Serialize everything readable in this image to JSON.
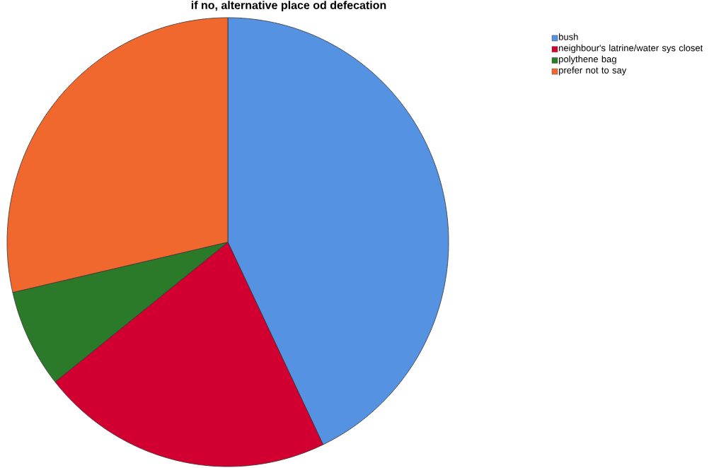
{
  "chart_data": {
    "type": "pie",
    "title": "if no, alternative place od defecation",
    "categories": [
      "bush",
      "neighbour's latrine/water sys closet",
      "polythene bag",
      "prefer not to say"
    ],
    "values": [
      42.9,
      21.4,
      7.1,
      28.6
    ],
    "colors": [
      "#5592e2",
      "#d20030",
      "#2a7a2a",
      "#f0682e"
    ],
    "legend": "top right"
  }
}
